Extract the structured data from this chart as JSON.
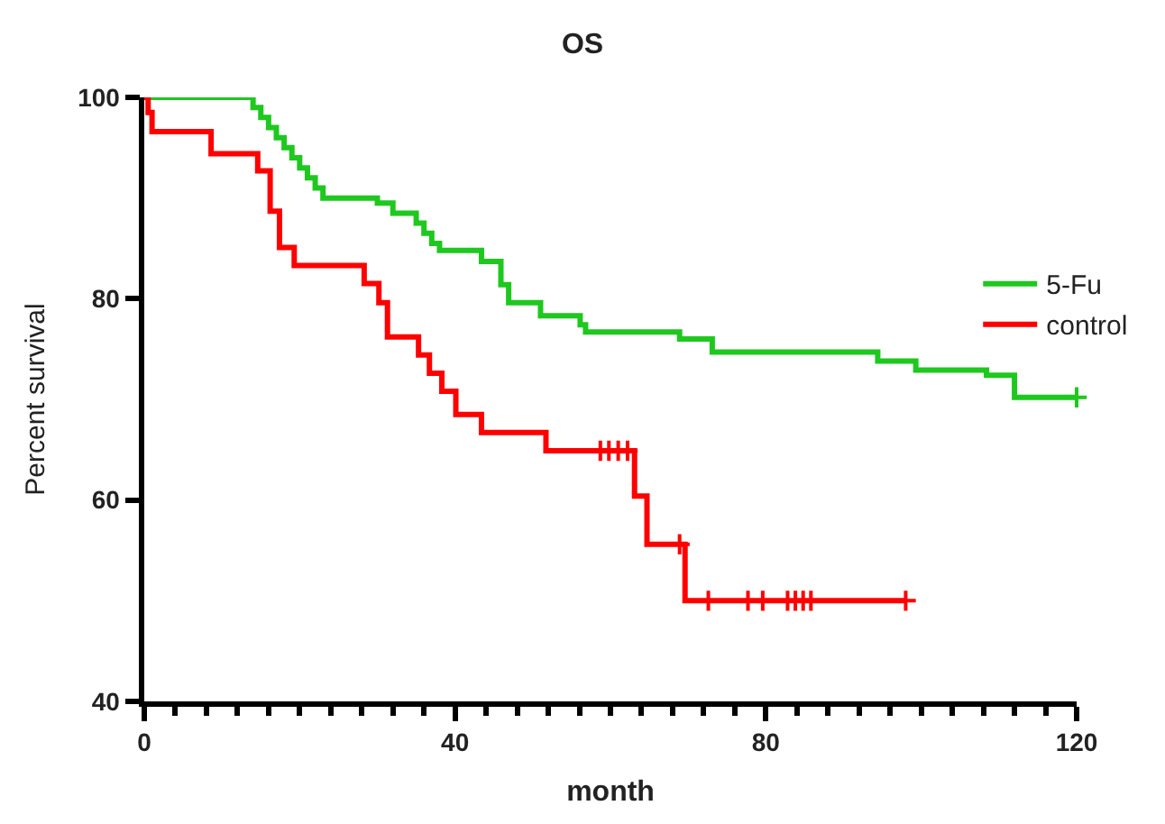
{
  "chart_data": {
    "type": "step",
    "title": "OS",
    "xlabel": "month",
    "ylabel": "Percent survival",
    "xlim": [
      0,
      120
    ],
    "ylim": [
      40,
      100
    ],
    "xticks": [
      0,
      {
        "value": 4,
        "label": null
      },
      {
        "value": 8,
        "label": null
      },
      {
        "value": 12,
        "label": null
      },
      {
        "value": 16,
        "label": null
      },
      {
        "value": 20,
        "label": null
      },
      {
        "value": 24,
        "label": null
      },
      {
        "value": 28,
        "label": null
      },
      {
        "value": 32,
        "label": null
      },
      {
        "value": 36,
        "label": null
      },
      40,
      {
        "value": 44,
        "label": null
      },
      {
        "value": 48,
        "label": null
      },
      {
        "value": 52,
        "label": null
      },
      {
        "value": 56,
        "label": null
      },
      {
        "value": 60,
        "label": null
      },
      {
        "value": 64,
        "label": null
      },
      {
        "value": 68,
        "label": null
      },
      {
        "value": 72,
        "label": null
      },
      {
        "value": 76,
        "label": null
      },
      80,
      {
        "value": 84,
        "label": null
      },
      {
        "value": 88,
        "label": null
      },
      {
        "value": 92,
        "label": null
      },
      {
        "value": 96,
        "label": null
      },
      {
        "value": 100,
        "label": null
      },
      {
        "value": 104,
        "label": null
      },
      {
        "value": 108,
        "label": null
      },
      {
        "value": 112,
        "label": null
      },
      {
        "value": 116,
        "label": null
      },
      120
    ],
    "yticks": [
      40,
      60,
      80,
      100
    ],
    "grid": false,
    "legend": "right",
    "series": [
      {
        "name": "5-Fu",
        "color": "#1ec81e",
        "x": [
          0,
          14,
          15,
          16,
          17,
          18,
          19,
          20,
          21,
          22,
          23,
          30,
          32,
          35,
          36,
          37,
          38,
          43.4,
          45.9,
          46.9,
          51,
          56.1,
          56.8,
          68.9,
          73.1,
          94.4,
          99.3,
          108.4,
          112,
          120
        ],
        "values": [
          100,
          99,
          98,
          97,
          96,
          95,
          94,
          93,
          92,
          91,
          90,
          89.5,
          88.5,
          87.5,
          86.5,
          85.5,
          84.8,
          83.7,
          81.4,
          79.6,
          78.3,
          77.4,
          76.7,
          76.0,
          74.7,
          73.8,
          72.9,
          72.4,
          70.2,
          70.2
        ]
      },
      {
        "name": "control",
        "color": "#ff0000",
        "x": [
          0,
          0.5,
          1,
          8.6,
          14.6,
          16.2,
          17.4,
          19.3,
          28.3,
          30.2,
          31.3,
          35.3,
          36.7,
          38.3,
          40.1,
          43.4,
          51.7,
          63.1,
          64.7,
          69.6,
          98
        ],
        "values": [
          100,
          98.5,
          96.6,
          94.4,
          92.7,
          88.7,
          85.1,
          83.3,
          81.5,
          79.6,
          76.2,
          74.4,
          72.6,
          70.8,
          68.5,
          66.7,
          64.9,
          60.4,
          55.6,
          50,
          50
        ]
      },
      {
        "color": "#1ec81e",
        "type": "scatter",
        "marker": "cross",
        "x": [
          120
        ],
        "values": [
          70.2
        ]
      },
      {
        "color": "#ff0000",
        "type": "scatter",
        "marker": "cross",
        "x": [
          58.7,
          59.8,
          61,
          62.2,
          68.9,
          72.6,
          77.7,
          79.6,
          82.8,
          83.8,
          84.8,
          85.8,
          98
        ],
        "values": [
          64.9,
          64.9,
          64.9,
          64.9,
          55.6,
          50,
          50,
          50,
          50,
          50,
          50,
          50,
          50
        ]
      }
    ]
  }
}
